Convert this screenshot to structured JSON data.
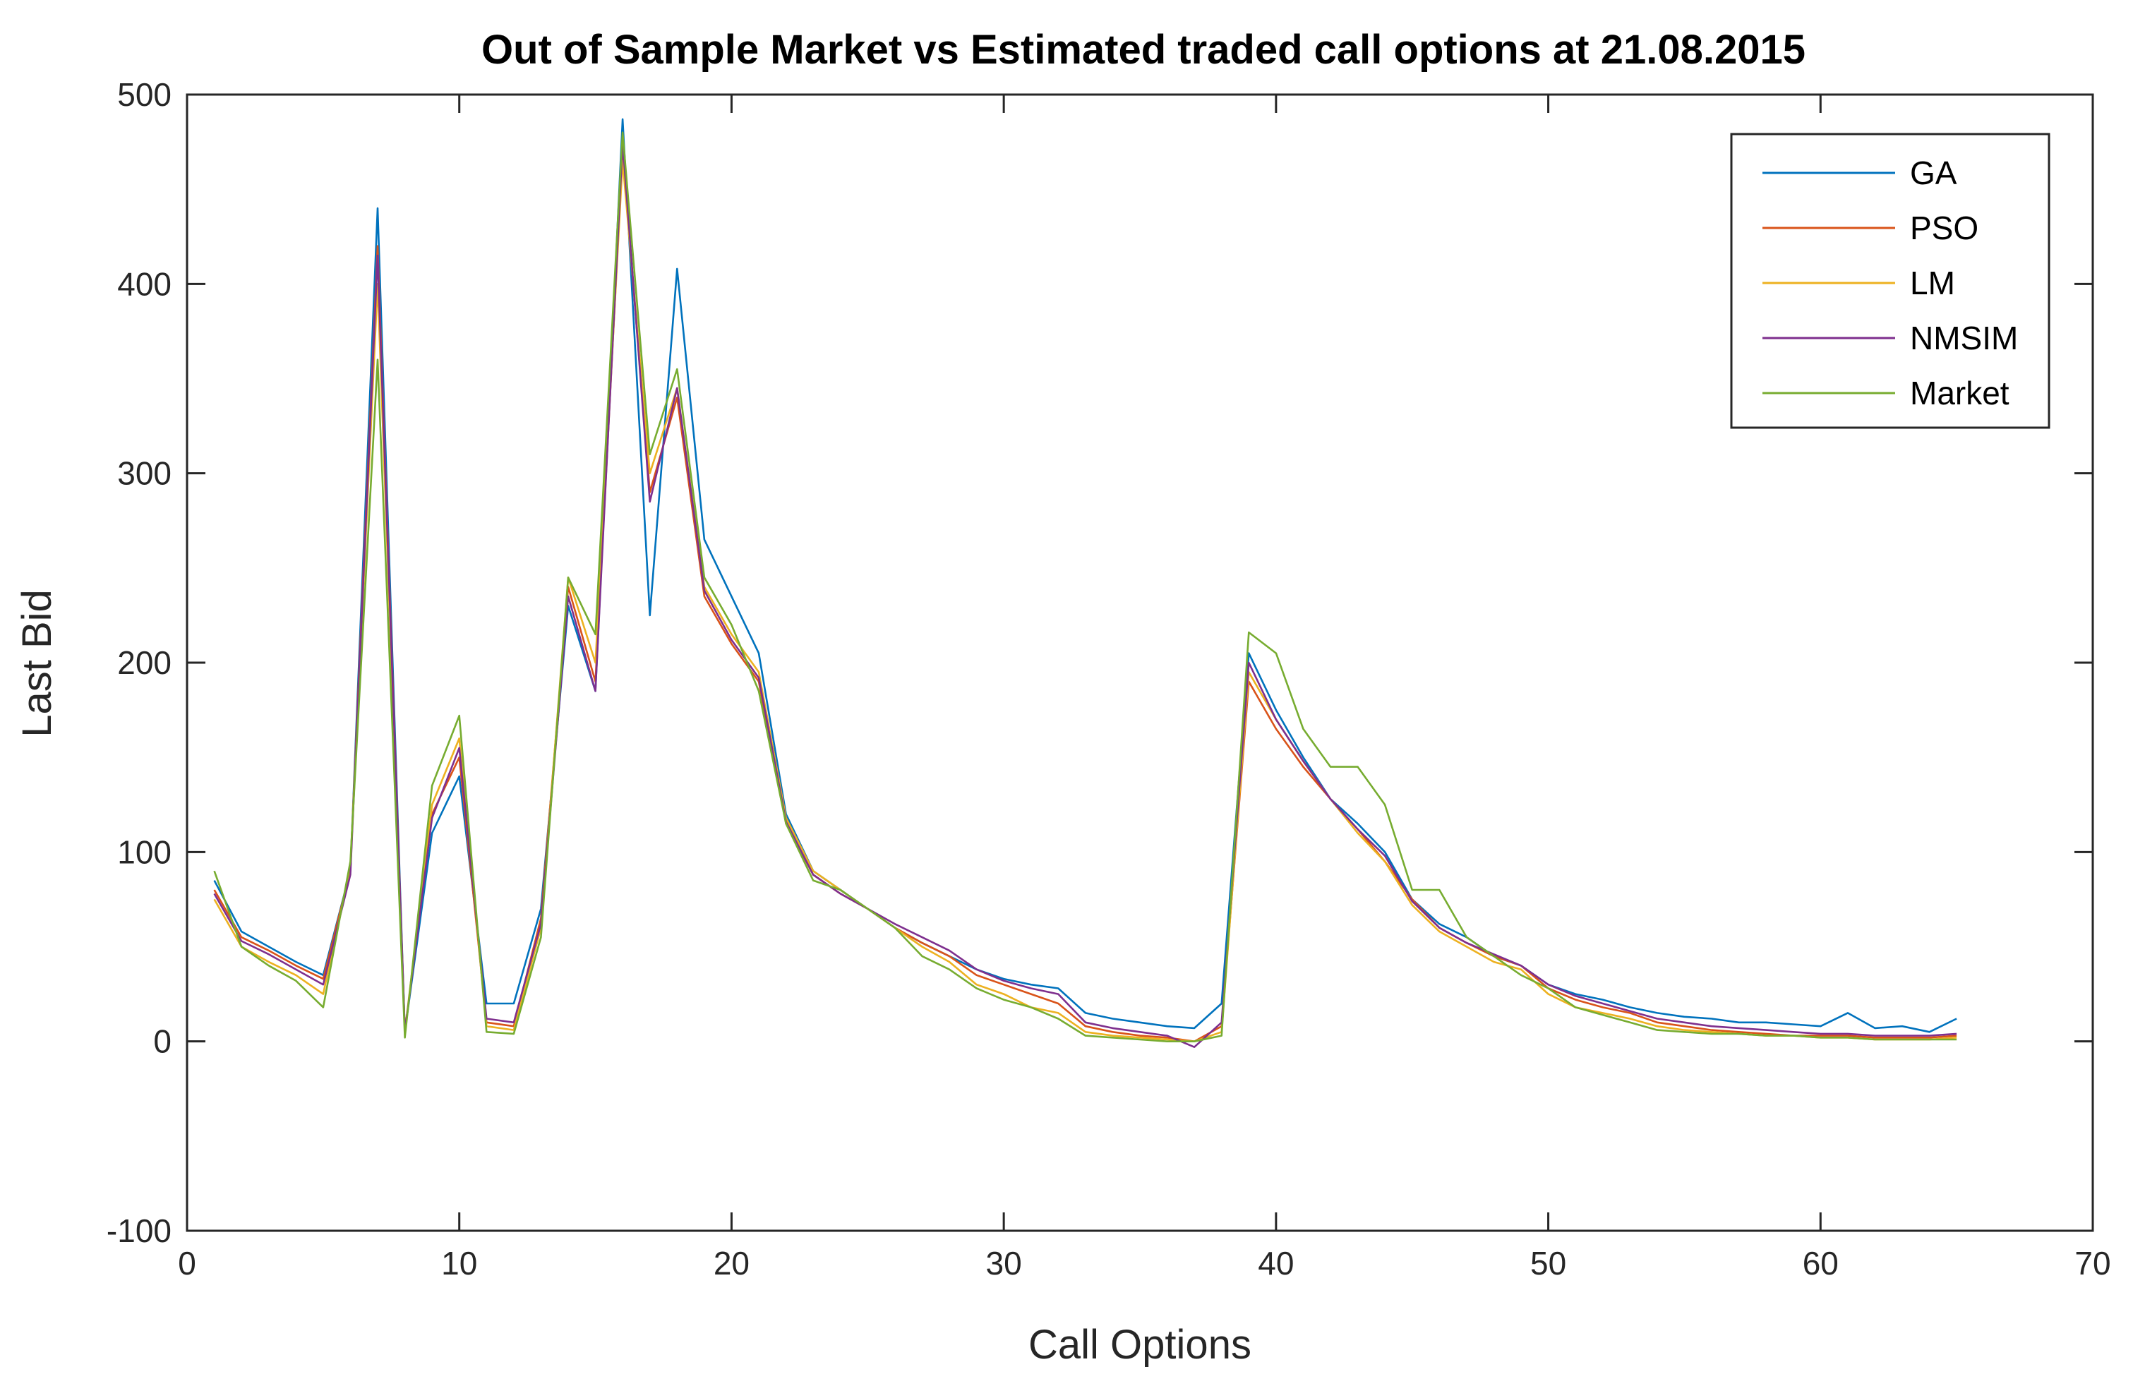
{
  "chart_data": {
    "type": "line",
    "title": "Out of Sample Market vs Estimated traded call options at 21.08.2015",
    "xlabel": "Call Options",
    "ylabel": "Last Bid",
    "xlim": [
      0,
      70
    ],
    "ylim": [
      -100,
      500
    ],
    "xticks": [
      "0",
      "10",
      "20",
      "30",
      "40",
      "50",
      "60",
      "70"
    ],
    "yticks": [
      "-100",
      "0",
      "100",
      "200",
      "300",
      "400",
      "500"
    ],
    "grid": false,
    "legend_position": "top-right",
    "x": [
      1,
      2,
      3,
      4,
      5,
      6,
      7,
      8,
      9,
      10,
      11,
      12,
      13,
      14,
      15,
      16,
      17,
      18,
      19,
      20,
      21,
      22,
      23,
      24,
      25,
      26,
      27,
      28,
      29,
      30,
      31,
      32,
      33,
      34,
      35,
      36,
      37,
      38,
      39,
      40,
      41,
      42,
      43,
      44,
      45,
      46,
      47,
      48,
      49,
      50,
      51,
      52,
      53,
      54,
      55,
      56,
      57,
      58,
      59,
      60,
      61,
      62,
      63,
      64,
      65
    ],
    "series": [
      {
        "name": "GA",
        "color": "#0072BD",
        "values": [
          85,
          58,
          50,
          42,
          35,
          90,
          440,
          5,
          110,
          140,
          20,
          20,
          70,
          230,
          185,
          487,
          225,
          408,
          265,
          235,
          205,
          120,
          90,
          80,
          70,
          60,
          52,
          45,
          38,
          33,
          30,
          28,
          15,
          12,
          10,
          8,
          7,
          20,
          205,
          175,
          150,
          128,
          115,
          100,
          75,
          62,
          55,
          45,
          40,
          30,
          25,
          22,
          18,
          15,
          13,
          12,
          10,
          10,
          9,
          8,
          15,
          7,
          8,
          5,
          12
        ]
      },
      {
        "name": "PSO",
        "color": "#D95319",
        "values": [
          80,
          55,
          48,
          40,
          33,
          90,
          420,
          5,
          120,
          150,
          10,
          8,
          65,
          240,
          190,
          470,
          290,
          340,
          235,
          210,
          190,
          115,
          88,
          78,
          70,
          60,
          52,
          45,
          35,
          30,
          25,
          20,
          8,
          5,
          3,
          2,
          0,
          8,
          190,
          165,
          145,
          128,
          112,
          95,
          75,
          60,
          52,
          45,
          40,
          28,
          22,
          18,
          15,
          10,
          8,
          6,
          5,
          4,
          3,
          3,
          3,
          2,
          2,
          2,
          3
        ]
      },
      {
        "name": "LM",
        "color": "#EDB120",
        "values": [
          75,
          50,
          42,
          35,
          25,
          92,
          400,
          5,
          125,
          160,
          8,
          6,
          60,
          245,
          200,
          465,
          300,
          345,
          240,
          215,
          195,
          118,
          90,
          80,
          70,
          60,
          50,
          42,
          30,
          25,
          18,
          15,
          5,
          3,
          2,
          1,
          0,
          5,
          195,
          170,
          148,
          128,
          110,
          95,
          72,
          58,
          50,
          42,
          38,
          25,
          18,
          15,
          12,
          8,
          6,
          5,
          4,
          3,
          3,
          2,
          2,
          1,
          1,
          1,
          2
        ]
      },
      {
        "name": "NMSIM",
        "color": "#7E2F8E",
        "values": [
          78,
          53,
          46,
          38,
          30,
          88,
          415,
          5,
          118,
          155,
          12,
          10,
          62,
          235,
          185,
          475,
          285,
          345,
          238,
          212,
          192,
          116,
          88,
          78,
          70,
          62,
          55,
          48,
          38,
          32,
          28,
          25,
          10,
          7,
          5,
          3,
          -3,
          10,
          200,
          170,
          148,
          128,
          112,
          98,
          74,
          60,
          52,
          46,
          40,
          30,
          24,
          20,
          16,
          12,
          10,
          8,
          7,
          6,
          5,
          4,
          4,
          3,
          3,
          3,
          4
        ]
      },
      {
        "name": "Market",
        "color": "#77AC30",
        "values": [
          90,
          50,
          40,
          32,
          18,
          95,
          360,
          2,
          135,
          172,
          5,
          4,
          55,
          245,
          215,
          480,
          310,
          355,
          245,
          220,
          185,
          115,
          85,
          80,
          70,
          60,
          45,
          38,
          28,
          22,
          18,
          12,
          3,
          2,
          1,
          0,
          0,
          3,
          216,
          205,
          165,
          145,
          145,
          125,
          80,
          80,
          55,
          45,
          35,
          28,
          18,
          14,
          10,
          6,
          5,
          4,
          4,
          3,
          3,
          2,
          2,
          1,
          1,
          1,
          1
        ]
      }
    ]
  }
}
